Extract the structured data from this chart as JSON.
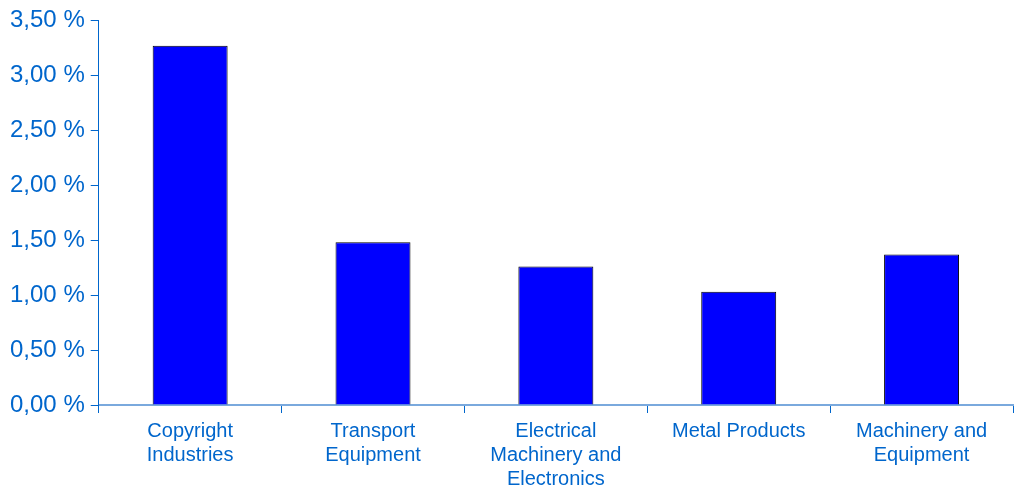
{
  "chart_data": {
    "type": "bar",
    "categories": [
      "Copyright Industries",
      "Transport Equipment",
      "Electrical Machinery and Electronics",
      "Metal Products",
      "Machinery and Equipment"
    ],
    "values": [
      3.27,
      1.48,
      1.26,
      1.03,
      1.37
    ],
    "color": "#0000ff",
    "ylim": [
      0,
      3.5
    ],
    "yticks": [
      {
        "value": 0,
        "label": "0,00 %"
      },
      {
        "value": 0.5,
        "label": "0,50 %"
      },
      {
        "value": 1,
        "label": "1,00 %"
      },
      {
        "value": 1.5,
        "label": "1,50 %"
      },
      {
        "value": 2,
        "label": "2,00 %"
      },
      {
        "value": 2.5,
        "label": "2,50 %"
      },
      {
        "value": 3,
        "label": "3,00 %"
      },
      {
        "value": 3.5,
        "label": "3,50 %"
      }
    ],
    "grid": false,
    "legend": false
  }
}
